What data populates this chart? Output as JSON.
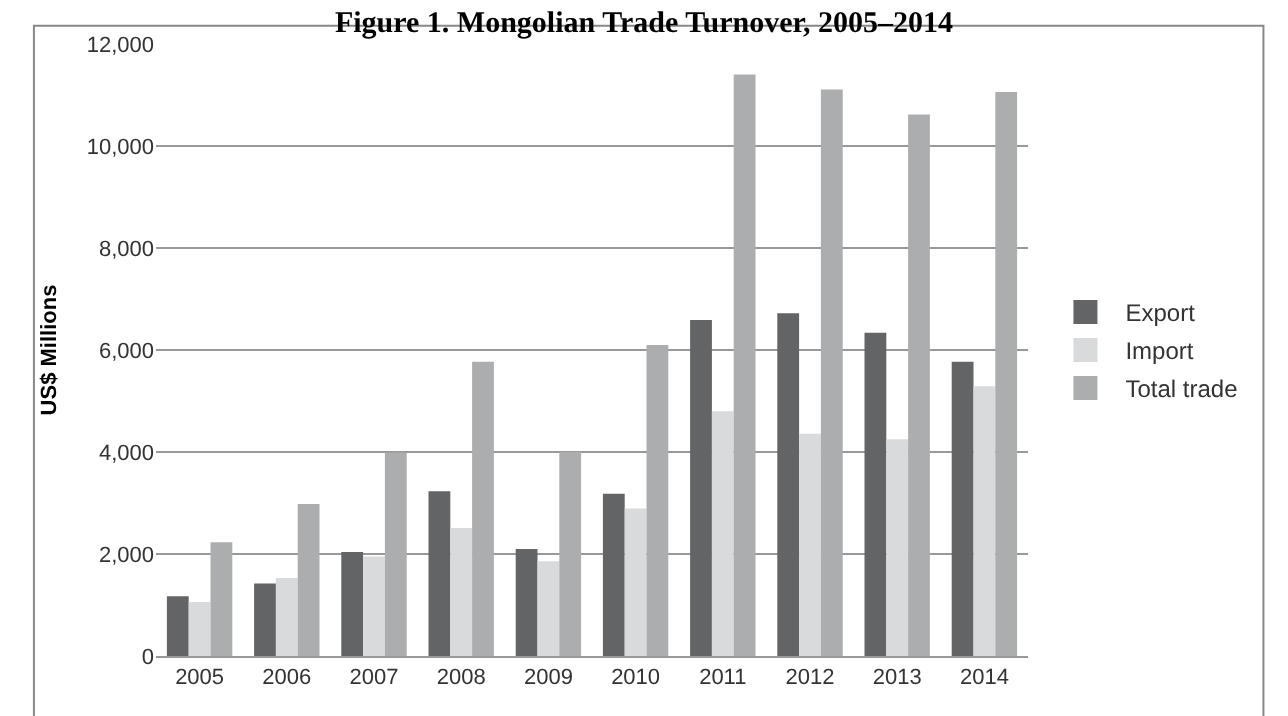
{
  "chart_data": {
    "type": "bar",
    "title": "Figure 1. Mongolian Trade Turnover, 2005–2014",
    "ylabel": "US$ Millions",
    "categories": [
      "2005",
      "2006",
      "2007",
      "2008",
      "2009",
      "2010",
      "2011",
      "2012",
      "2013",
      "2014"
    ],
    "series": [
      {
        "name": "Export",
        "color": "#636466",
        "values": [
          1170,
          1420,
          2040,
          3230,
          2100,
          3180,
          6590,
          6720,
          6340,
          5770
        ]
      },
      {
        "name": "Import",
        "color": "#d9dadb",
        "values": [
          1060,
          1530,
          1950,
          2510,
          1860,
          2890,
          4800,
          4360,
          4250,
          5290
        ]
      },
      {
        "name": "Total trade",
        "color": "#acadae",
        "values": [
          2230,
          2980,
          3990,
          5770,
          4000,
          6100,
          11400,
          11110,
          10620,
          11060
        ]
      }
    ],
    "ylim": [
      0,
      12000
    ],
    "yticks": [
      {
        "value": 0,
        "label": "0"
      },
      {
        "value": 2000,
        "label": "2,000"
      },
      {
        "value": 4000,
        "label": "4,000"
      },
      {
        "value": 6000,
        "label": "6,000"
      },
      {
        "value": 8000,
        "label": "8,000"
      },
      {
        "value": 10000,
        "label": "10,000"
      },
      {
        "value": 12000,
        "label": "12,000"
      }
    ],
    "grid": "y",
    "legend": "right"
  }
}
